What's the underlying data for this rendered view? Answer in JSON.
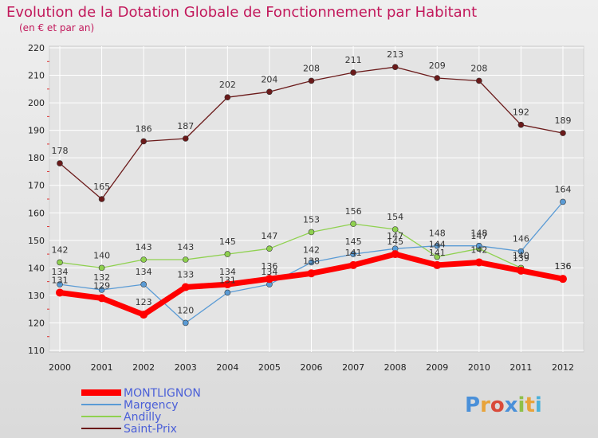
{
  "chart_data": {
    "type": "line",
    "title": "Evolution de la Dotation Globale de Fonctionnement par Habitant",
    "subtitle": "(en € et par an)",
    "xlabel": "",
    "ylabel": "",
    "ylim": [
      110,
      220
    ],
    "yticks": [
      110,
      120,
      130,
      140,
      150,
      160,
      170,
      180,
      190,
      200,
      210,
      220
    ],
    "grid": true,
    "legend_position": "bottom-left",
    "x": [
      "2000",
      "2001",
      "2002",
      "2003",
      "2004",
      "2005",
      "2006",
      "2007",
      "2008",
      "2009",
      "2010",
      "2011",
      "2012"
    ],
    "series": [
      {
        "name": "Saint-Prix",
        "color": "#6b1a1a",
        "values": [
          178,
          165,
          186,
          187,
          202,
          204,
          208,
          211,
          213,
          209,
          208,
          192,
          189
        ]
      },
      {
        "name": "Andilly",
        "color": "#8fd14f",
        "values": [
          142,
          140,
          143,
          143,
          145,
          147,
          153,
          156,
          154,
          144,
          147,
          140,
          136
        ]
      },
      {
        "name": "Margency",
        "color": "#5a9bd5",
        "values": [
          134,
          132,
          134,
          120,
          131,
          134,
          142,
          145,
          147,
          148,
          148,
          146,
          164
        ]
      },
      {
        "name": "MONTLIGNON",
        "color": "#ff0000",
        "values": [
          131,
          129,
          123,
          133,
          134,
          136,
          138,
          141,
          145,
          141,
          142,
          139,
          136
        ]
      }
    ],
    "legend_order": [
      "MONTLIGNON",
      "Margency",
      "Andilly",
      "Saint-Prix"
    ]
  },
  "logo": {
    "text": "Proxiti",
    "colors": [
      "#4a90d9",
      "#e8a33a",
      "#d94a3a",
      "#4a90d9",
      "#8fc04a",
      "#e8a33a",
      "#4ab0d9"
    ]
  }
}
